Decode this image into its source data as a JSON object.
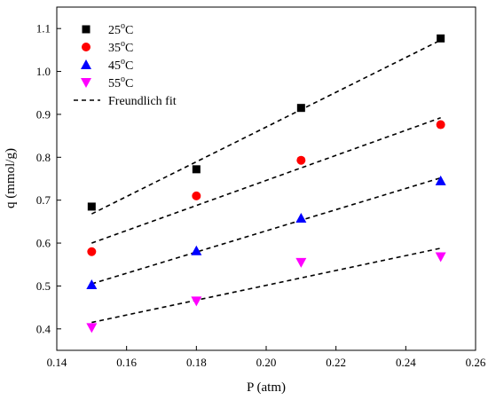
{
  "chart_data": {
    "type": "scatter",
    "xlabel": "P (atm)",
    "ylabel": "q (mmol/g)",
    "xlim": [
      0.14,
      0.26
    ],
    "ylim": [
      0.35,
      1.15
    ],
    "xticks": [
      0.14,
      0.16,
      0.18,
      0.2,
      0.22,
      0.24,
      0.26
    ],
    "xtick_labels": [
      "0.14",
      "0.16",
      "0.18",
      "0.20",
      "0.22",
      "0.24",
      "0.26"
    ],
    "yticks": [
      0.4,
      0.5,
      0.6,
      0.7,
      0.8,
      0.9,
      1.0,
      1.1
    ],
    "ytick_labels": [
      "0.4",
      "0.5",
      "0.6",
      "0.7",
      "0.8",
      "0.9",
      "1.0",
      "1.1"
    ],
    "grid": false,
    "legend_position": "top-left",
    "x": [
      0.15,
      0.18,
      0.21,
      0.25
    ],
    "series": [
      {
        "name": "25°C",
        "label_base": "25",
        "label_sup": "o",
        "label_unit": "C",
        "marker": "square",
        "color": "#000000",
        "values": [
          0.685,
          0.772,
          0.915,
          1.077
        ],
        "fit": [
          0.668,
          0.792,
          0.92,
          1.073
        ]
      },
      {
        "name": "35°C",
        "label_base": "35",
        "label_sup": "o",
        "label_unit": "C",
        "marker": "circle",
        "color": "#ff0000",
        "values": [
          0.58,
          0.71,
          0.793,
          0.876
        ],
        "fit": [
          0.6,
          0.697,
          0.79,
          0.892
        ]
      },
      {
        "name": "45°C",
        "label_base": "45",
        "label_sup": "o",
        "label_unit": "C",
        "marker": "triangle-up",
        "color": "#0000ff",
        "values": [
          0.503,
          0.582,
          0.658,
          0.745
        ],
        "fit": [
          0.505,
          0.582,
          0.656,
          0.752
        ]
      },
      {
        "name": "55°C",
        "label_base": "55",
        "label_sup": "o",
        "label_unit": "C",
        "marker": "triangle-down",
        "color": "#ff00ff",
        "values": [
          0.403,
          0.465,
          0.555,
          0.568
        ],
        "fit": [
          0.415,
          0.464,
          0.52,
          0.588
        ]
      }
    ],
    "fit_legend_label": "Freundlich fit"
  }
}
